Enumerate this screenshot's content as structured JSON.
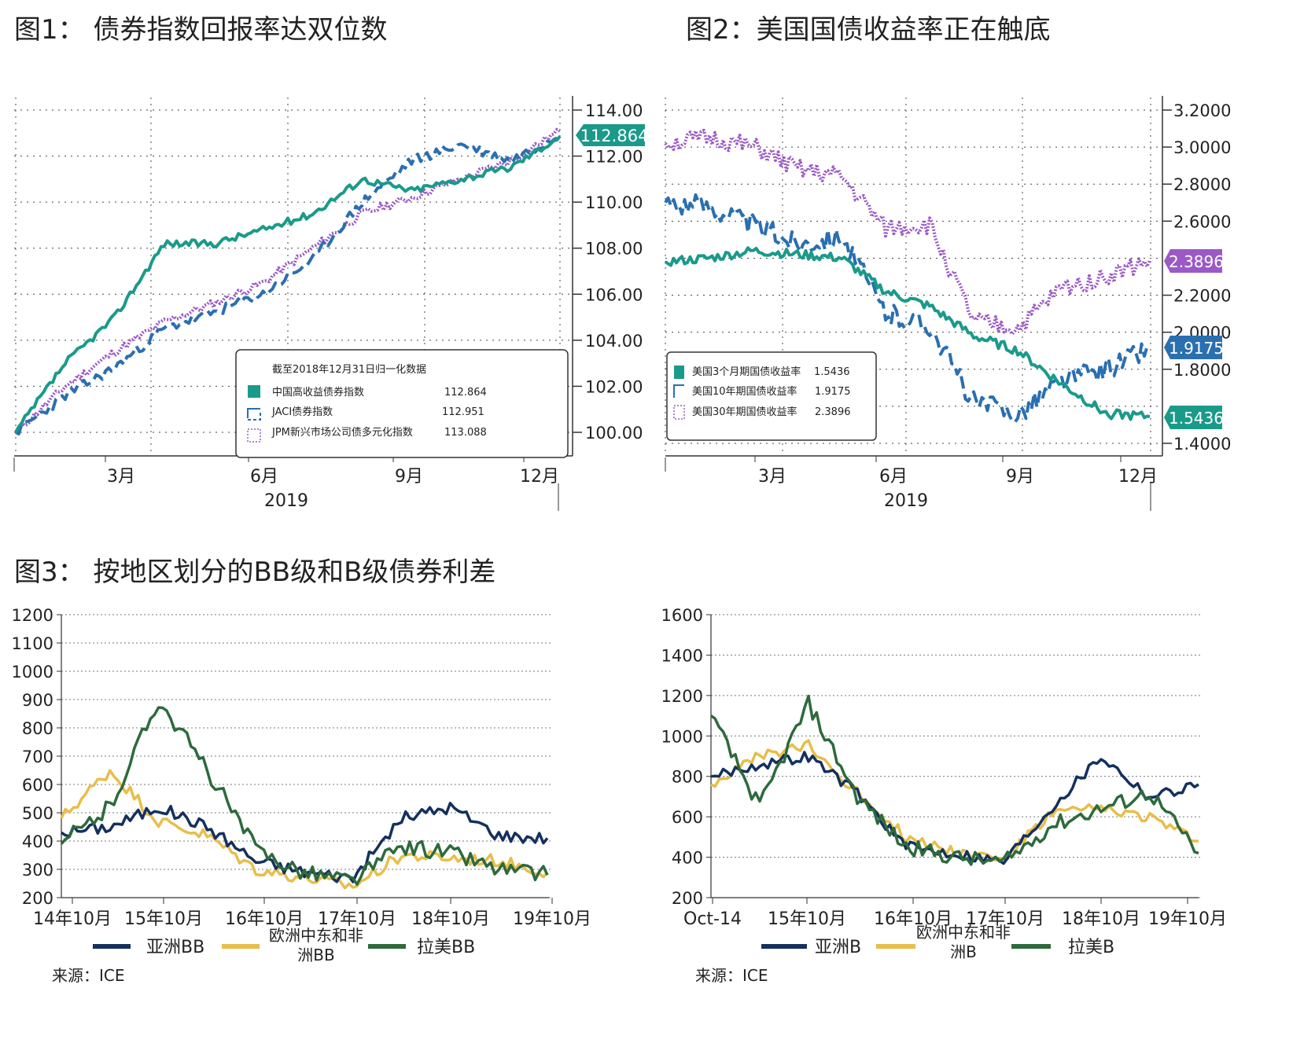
{
  "fig1": {
    "title": "图1： 债券指数回报率达双位数",
    "year": "2019",
    "x_ticks": [
      "3月",
      "6月",
      "9月",
      "12月"
    ],
    "y_ticks": [
      "114.00",
      "112.00",
      "110.00",
      "108.00",
      "106.00",
      "104.00",
      "102.00",
      "100.00"
    ],
    "callout": "112.864",
    "legend_title": "截至2018年12月31日归一化数据",
    "legend": [
      {
        "name": "中国高收益债券指数",
        "value": "112.864"
      },
      {
        "name": "JACI债券指数",
        "value": "112.951"
      },
      {
        "name": "JPM新兴市场公司债多元化指数",
        "value": "113.088"
      }
    ]
  },
  "fig2": {
    "title": "图2：美国国债收益率正在触底",
    "year": "2019",
    "x_ticks": [
      "3月",
      "6月",
      "9月",
      "12月"
    ],
    "y_ticks": [
      "3.2000",
      "3.0000",
      "2.8000",
      "2.6000",
      "2.2000",
      "2.0000",
      "1.8000",
      "1.4000"
    ],
    "callouts": [
      "2.3896",
      "1.9175",
      "1.5436"
    ],
    "legend": [
      {
        "name": "美国3个月期国债收益率",
        "value": "1.5436"
      },
      {
        "name": "美国10年期国债收益率",
        "value": "1.9175"
      },
      {
        "name": "美国30年期国债收益率",
        "value": "2.3896"
      }
    ]
  },
  "fig3": {
    "title": "图3： 按地区划分的BB级和B级债券利差",
    "left": {
      "y_ticks": [
        "1200",
        "1100",
        "1000",
        "900",
        "800",
        "700",
        "600",
        "500",
        "400",
        "300",
        "200"
      ],
      "x_ticks": [
        "14年10月",
        "15年10月",
        "16年10月",
        "17年10月",
        "18年10月",
        "19年10月"
      ],
      "legend": [
        "亚洲BB",
        "欧洲中东和非洲BB",
        "拉美BB"
      ],
      "source": "来源：ICE"
    },
    "right": {
      "y_ticks": [
        "1600",
        "1400",
        "1200",
        "1000",
        "800",
        "600",
        "400",
        "200"
      ],
      "x_ticks": [
        "Oct-14",
        "15年10月",
        "16年10月",
        "17年10月",
        "18年10月",
        "19年10月"
      ],
      "legend": [
        "亚洲B",
        "欧洲中东和非洲B",
        "拉美B"
      ],
      "source": "来源：ICE"
    }
  },
  "colors": {
    "teal": "#1a9a8a",
    "blue": "#2a6fb0",
    "purple": "#9b59c6",
    "navy": "#14305e",
    "gold": "#e8be4a",
    "green": "#2d6a3c"
  },
  "chart_data": [
    {
      "type": "line",
      "title": "图1： 债券指数回报率达双位数",
      "x": [
        "2019-01",
        "2019-02",
        "2019-03",
        "2019-04",
        "2019-05",
        "2019-06",
        "2019-07",
        "2019-08",
        "2019-09",
        "2019-10",
        "2019-11",
        "2019-12"
      ],
      "ylim": [
        99.5,
        114.5
      ],
      "series": [
        {
          "name": "中国高收益债券指数",
          "values": [
            100.0,
            103.0,
            105.0,
            108.2,
            108.2,
            108.8,
            109.5,
            111.0,
            110.5,
            111.0,
            111.5,
            112.864
          ]
        },
        {
          "name": "JACI债券指数",
          "values": [
            100.0,
            101.6,
            102.8,
            104.5,
            105.2,
            106.0,
            107.5,
            110.0,
            111.8,
            112.5,
            111.8,
            112.951
          ]
        },
        {
          "name": "JPM新兴市场公司债多元化指数",
          "values": [
            100.0,
            102.0,
            103.5,
            104.8,
            105.6,
            106.5,
            108.0,
            109.5,
            110.2,
            111.0,
            111.8,
            113.088
          ]
        }
      ]
    },
    {
      "type": "line",
      "title": "图2：美国国债收益率正在触底",
      "x": [
        "2019-01",
        "2019-02",
        "2019-03",
        "2019-04",
        "2019-05",
        "2019-06",
        "2019-07",
        "2019-08",
        "2019-09",
        "2019-10",
        "2019-11",
        "2019-12"
      ],
      "ylim": [
        1.35,
        3.25
      ],
      "series": [
        {
          "name": "美国3个月期国债收益率",
          "values": [
            2.38,
            2.4,
            2.44,
            2.42,
            2.4,
            2.22,
            2.14,
            1.98,
            1.9,
            1.72,
            1.56,
            1.5436
          ]
        },
        {
          "name": "美国10年期国债收益率",
          "values": [
            2.7,
            2.68,
            2.58,
            2.48,
            2.52,
            2.1,
            2.04,
            1.62,
            1.56,
            1.74,
            1.8,
            1.9175
          ]
        },
        {
          "name": "美国30年期国债收益率",
          "values": [
            3.02,
            3.05,
            3.0,
            2.88,
            2.84,
            2.56,
            2.58,
            2.06,
            2.02,
            2.24,
            2.3,
            2.3896
          ]
        }
      ]
    },
    {
      "type": "line",
      "title": "",
      "x": [
        "14年10月",
        "15年4月",
        "15年10月",
        "16年4月",
        "16年10月",
        "17年4月",
        "17年10月",
        "18年4月",
        "18年10月",
        "19年4月",
        "19年10月"
      ],
      "ylim": [
        200,
        1200
      ],
      "series": [
        {
          "name": "亚洲BB",
          "values": [
            430,
            450,
            520,
            450,
            330,
            290,
            270,
            480,
            520,
            420,
            410
          ]
        },
        {
          "name": "欧洲中东和非洲BB",
          "values": [
            480,
            650,
            470,
            420,
            300,
            270,
            240,
            350,
            340,
            330,
            290
          ]
        },
        {
          "name": "拉美BB",
          "values": [
            390,
            520,
            900,
            650,
            370,
            290,
            260,
            380,
            360,
            300,
            280
          ]
        }
      ]
    },
    {
      "type": "line",
      "title": "",
      "x": [
        "Oct-14",
        "15年4月",
        "15年10月",
        "16年4月",
        "16年10月",
        "17年4月",
        "17年10月",
        "18年4月",
        "18年10月",
        "19年4月",
        "19年10月"
      ],
      "ylim": [
        200,
        1600
      ],
      "series": [
        {
          "name": "亚洲B",
          "values": [
            800,
            860,
            900,
            720,
            450,
            420,
            380,
            650,
            900,
            700,
            760
          ]
        },
        {
          "name": "欧洲中东和非洲B",
          "values": [
            760,
            900,
            950,
            720,
            500,
            430,
            390,
            620,
            640,
            600,
            480
          ]
        },
        {
          "name": "拉美B",
          "values": [
            1100,
            650,
            1160,
            700,
            450,
            400,
            370,
            560,
            640,
            720,
            420
          ]
        }
      ]
    }
  ]
}
